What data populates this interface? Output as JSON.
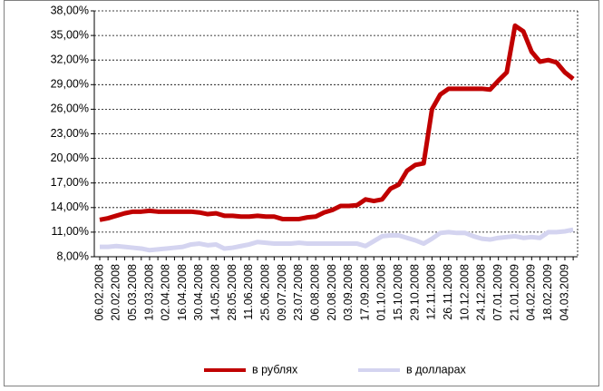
{
  "chart_data": {
    "type": "line",
    "categories": [
      "06.02.2008",
      null,
      "20.02.2008",
      null,
      "05.03.2008",
      null,
      "19.03.2008",
      null,
      "02.04.2008",
      null,
      "16.04.2008",
      null,
      "30.04.2008",
      null,
      "14.05.2008",
      null,
      "28.05.2008",
      null,
      "11.06.2008",
      null,
      "25.06.2008",
      null,
      "09.07.2008",
      null,
      "23.07.2008",
      null,
      "06.08.2008",
      null,
      "20.08.2008",
      null,
      "03.09.2008",
      null,
      "17.09.2008",
      null,
      "01.10.2008",
      null,
      "15.10.2008",
      null,
      "29.10.2008",
      null,
      "12.11.2008",
      null,
      "26.11.2008",
      null,
      "10.12.2008",
      null,
      "24.12.2008",
      null,
      "07.01.2009",
      null,
      "21.01.2009",
      null,
      "04.02.2009",
      null,
      "18.02.2009",
      null,
      "04.03.2009",
      null
    ],
    "series": [
      {
        "name": "в рублях",
        "color": "#c00000",
        "values": [
          12.5,
          12.7,
          13.0,
          13.3,
          13.5,
          13.5,
          13.6,
          13.5,
          13.5,
          13.5,
          13.5,
          13.5,
          13.4,
          13.2,
          13.3,
          13.0,
          13.0,
          12.9,
          12.9,
          13.0,
          12.9,
          12.9,
          12.6,
          12.6,
          12.6,
          12.8,
          12.9,
          13.4,
          13.7,
          14.2,
          14.2,
          14.3,
          15.0,
          14.8,
          15.0,
          16.3,
          16.8,
          18.5,
          19.2,
          19.4,
          26.0,
          27.8,
          28.5,
          28.5,
          28.5,
          28.5,
          28.5,
          28.4,
          29.5,
          30.5,
          36.2,
          35.5,
          33.0,
          31.8,
          32.0,
          31.7,
          30.5,
          29.7
        ]
      },
      {
        "name": "в долларах",
        "color": "#d4d4f0",
        "values": [
          9.2,
          9.2,
          9.3,
          9.2,
          9.1,
          9.0,
          8.8,
          8.9,
          9.0,
          9.1,
          9.2,
          9.5,
          9.6,
          9.4,
          9.5,
          9.0,
          9.1,
          9.3,
          9.5,
          9.8,
          9.7,
          9.6,
          9.6,
          9.6,
          9.7,
          9.6,
          9.6,
          9.6,
          9.6,
          9.6,
          9.6,
          9.6,
          9.3,
          9.9,
          10.5,
          10.6,
          10.6,
          10.3,
          10.0,
          9.6,
          10.2,
          10.9,
          11.0,
          10.9,
          10.9,
          10.5,
          10.2,
          10.1,
          10.3,
          10.4,
          10.5,
          10.3,
          10.4,
          10.3,
          11.0,
          11.0,
          11.1,
          11.3
        ]
      }
    ],
    "ylim": [
      8,
      38
    ],
    "yticks": [
      {
        "value": 8,
        "label": "8,00%"
      },
      {
        "value": 11,
        "label": "11,00%"
      },
      {
        "value": 14,
        "label": "14,00%"
      },
      {
        "value": 17,
        "label": "17,00%"
      },
      {
        "value": 20,
        "label": "20,00%"
      },
      {
        "value": 23,
        "label": "23,00%"
      },
      {
        "value": 26,
        "label": "26,00%"
      },
      {
        "value": 29,
        "label": "29,00%"
      },
      {
        "value": 32,
        "label": "32,00%"
      },
      {
        "value": 35,
        "label": "35,00%"
      },
      {
        "value": 38,
        "label": "38,00%"
      }
    ],
    "grid": true,
    "legend": "bottom"
  }
}
